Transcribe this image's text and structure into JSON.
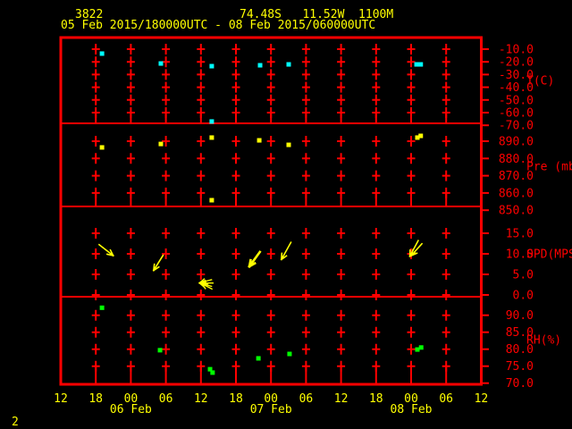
{
  "header": {
    "station_id": "3822",
    "location": "74.48S   11.52W  1100M",
    "time_range": "05 Feb 2015/180000UTC - 08 Feb 2015/060000UTC"
  },
  "page_number": "2",
  "colors": {
    "background": "#000000",
    "grid": "#ff0000",
    "axis_text_red": "#ff0000",
    "text_yellow": "#ffff00",
    "temp_point": "#00ffff",
    "pressure_point": "#ffff00",
    "rh_point": "#00ff00",
    "wind_arrow": "#ffff00"
  },
  "time_axis": {
    "tick_labels": [
      "12",
      "18",
      "00",
      "06",
      "12",
      "18",
      "00",
      "06",
      "12",
      "18",
      "00",
      "06",
      "12"
    ],
    "date_labels": [
      {
        "label": "06 Feb",
        "tick_index": 2
      },
      {
        "label": "07 Feb",
        "tick_index": 6
      },
      {
        "label": "08 Feb",
        "tick_index": 10
      }
    ]
  },
  "chart_data": [
    {
      "type": "scatter",
      "panel": "temperature",
      "ylabel": "T(C)",
      "tick_labels": [
        "-10.0",
        "-20.0",
        "-30.0",
        "-40.0",
        "-50.0",
        "-60.0",
        "-70.0"
      ],
      "tick_values": [
        -10,
        -20,
        -30,
        -40,
        -50,
        -60,
        -70
      ],
      "ylim": [
        -70,
        -10
      ],
      "points": [
        {
          "x_frac": 0.098,
          "value": -13.5
        },
        {
          "x_frac": 0.238,
          "value": -21.3
        },
        {
          "x_frac": 0.359,
          "value": -23.4
        },
        {
          "x_frac": 0.474,
          "value": -22.7
        },
        {
          "x_frac": 0.542,
          "value": -22.0
        },
        {
          "x_frac": 0.846,
          "value": -22.0
        },
        {
          "x_frac": 0.856,
          "value": -22.0
        },
        {
          "x_frac": 0.359,
          "value": -67.0
        }
      ]
    },
    {
      "type": "scatter",
      "panel": "pressure",
      "ylabel": "Pre (mb)",
      "tick_labels": [
        "890.0",
        "880.0",
        "870.0",
        "860.0",
        "850.0"
      ],
      "tick_values": [
        890,
        880,
        870,
        860,
        850
      ],
      "ylim": [
        850,
        890
      ],
      "points": [
        {
          "x_frac": 0.098,
          "value": 886.4
        },
        {
          "x_frac": 0.238,
          "value": 888.4
        },
        {
          "x_frac": 0.359,
          "value": 892.1
        },
        {
          "x_frac": 0.472,
          "value": 890.5
        },
        {
          "x_frac": 0.542,
          "value": 887.9
        },
        {
          "x_frac": 0.848,
          "value": 892.1
        },
        {
          "x_frac": 0.856,
          "value": 893.1
        },
        {
          "x_frac": 0.359,
          "value": 855.8
        }
      ]
    },
    {
      "type": "scatter",
      "panel": "wind-speed",
      "ylabel": "SPD(MPS)",
      "tick_labels": [
        "15.0",
        "10.0",
        "5.0",
        "0.0"
      ],
      "tick_values": [
        15,
        10,
        5,
        0
      ],
      "ylim": [
        0,
        15
      ],
      "arrows": [
        {
          "x_frac": 0.108,
          "value": 10.9,
          "angle": 38,
          "len": 20,
          "width": 1.6
        },
        {
          "x_frac": 0.232,
          "value": 7.8,
          "angle": 122,
          "len": 20,
          "width": 1.6
        },
        {
          "x_frac": 0.344,
          "value": 3.3,
          "angle": 165,
          "len": 14,
          "width": 1.4
        },
        {
          "x_frac": 0.346,
          "value": 2.9,
          "angle": 180,
          "len": 15,
          "width": 1.4
        },
        {
          "x_frac": 0.344,
          "value": 2.5,
          "angle": 195,
          "len": 14,
          "width": 1.4
        },
        {
          "x_frac": 0.347,
          "value": 2.1,
          "angle": 207,
          "len": 13,
          "width": 1.4
        },
        {
          "x_frac": 0.461,
          "value": 8.7,
          "angle": 126,
          "len": 20,
          "width": 2.6
        },
        {
          "x_frac": 0.536,
          "value": 10.7,
          "angle": 119,
          "len": 22,
          "width": 1.6
        },
        {
          "x_frac": 0.84,
          "value": 11.3,
          "angle": 118,
          "len": 20,
          "width": 1.6
        },
        {
          "x_frac": 0.846,
          "value": 11.0,
          "angle": 132,
          "len": 18,
          "width": 1.6
        }
      ]
    },
    {
      "type": "scatter",
      "panel": "relative-humidity",
      "ylabel": "RH(%)",
      "tick_labels": [
        "90.0",
        "85.0",
        "80.0",
        "75.0",
        "70.0"
      ],
      "tick_values": [
        90,
        85,
        80,
        75,
        70
      ],
      "ylim": [
        70,
        90
      ],
      "points": [
        {
          "x_frac": 0.098,
          "value": 92.2
        },
        {
          "x_frac": 0.236,
          "value": 79.7
        },
        {
          "x_frac": 0.355,
          "value": 74.1
        },
        {
          "x_frac": 0.361,
          "value": 73.1
        },
        {
          "x_frac": 0.47,
          "value": 77.3
        },
        {
          "x_frac": 0.544,
          "value": 78.6
        },
        {
          "x_frac": 0.848,
          "value": 79.9
        },
        {
          "x_frac": 0.857,
          "value": 80.5
        }
      ]
    }
  ]
}
